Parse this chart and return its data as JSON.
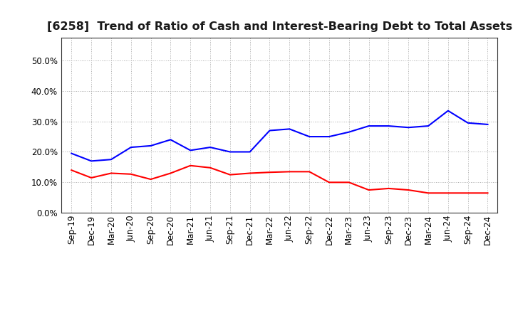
{
  "title": "[6258]  Trend of Ratio of Cash and Interest-Bearing Debt to Total Assets",
  "labels": [
    "Sep-19",
    "Dec-19",
    "Mar-20",
    "Jun-20",
    "Sep-20",
    "Dec-20",
    "Mar-21",
    "Jun-21",
    "Sep-21",
    "Dec-21",
    "Mar-22",
    "Jun-22",
    "Sep-22",
    "Dec-22",
    "Mar-23",
    "Jun-23",
    "Sep-23",
    "Dec-23",
    "Mar-24",
    "Jun-24",
    "Sep-24",
    "Dec-24"
  ],
  "cash": [
    0.14,
    0.115,
    0.13,
    0.127,
    0.11,
    0.13,
    0.155,
    0.148,
    0.125,
    0.13,
    0.133,
    0.135,
    0.135,
    0.1,
    0.1,
    0.075,
    0.08,
    0.075,
    0.065,
    0.065,
    0.065,
    0.065
  ],
  "ibd": [
    0.195,
    0.17,
    0.175,
    0.215,
    0.22,
    0.24,
    0.205,
    0.215,
    0.2,
    0.2,
    0.27,
    0.275,
    0.25,
    0.25,
    0.265,
    0.285,
    0.285,
    0.28,
    0.285,
    0.335,
    0.295,
    0.29
  ],
  "cash_color": "#ff0000",
  "ibd_color": "#0000ff",
  "ylim": [
    0.0,
    0.575
  ],
  "yticks": [
    0.0,
    0.1,
    0.2,
    0.3,
    0.4,
    0.5
  ],
  "background_color": "#ffffff",
  "grid_color": "#aaaaaa",
  "title_fontsize": 11.5,
  "tick_fontsize": 8.5,
  "legend_fontsize": 9.5
}
